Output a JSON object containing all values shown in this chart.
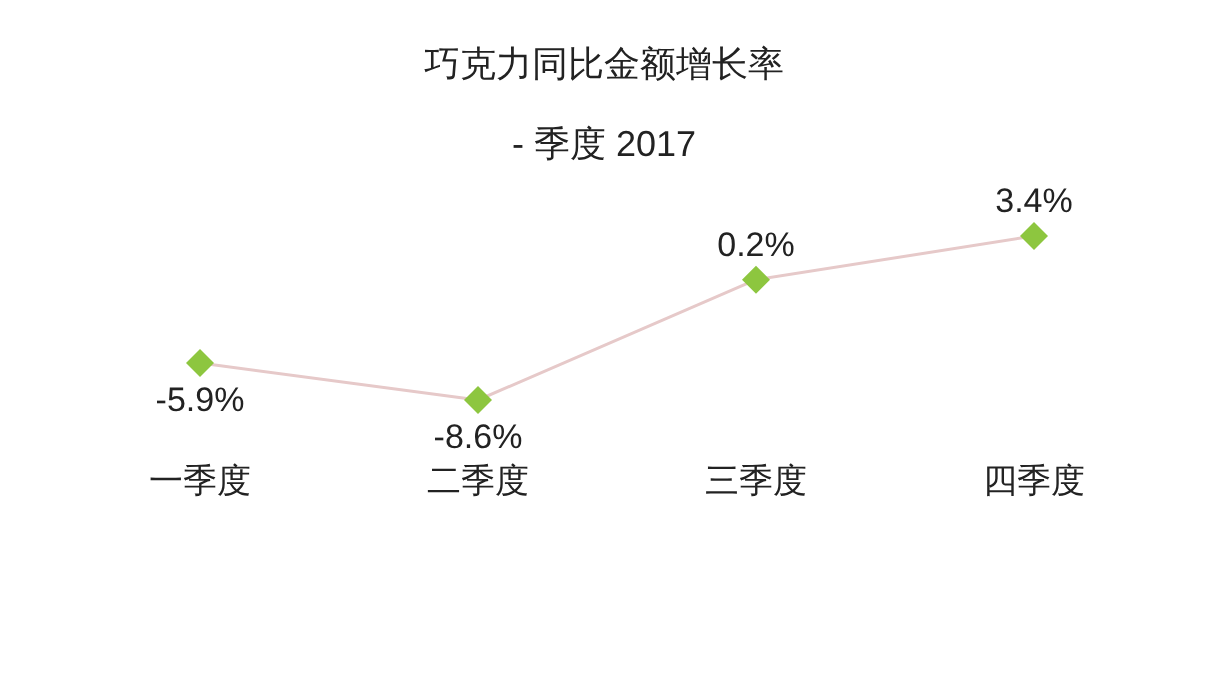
{
  "chart_data": {
    "type": "line",
    "title": "巧克力同比金额增长率",
    "subtitle": "- 季度 2017",
    "categories": [
      "一季度",
      "二季度",
      "三季度",
      "四季度"
    ],
    "series": [
      {
        "color": "#8dc63f",
        "values": [
          -5.9,
          -8.6,
          0.2,
          3.4
        ],
        "value_labels": [
          "-5.9%",
          "-8.6%",
          "0.2%",
          "3.4%"
        ]
      }
    ],
    "marker": "diamond",
    "line_style": "solid"
  }
}
